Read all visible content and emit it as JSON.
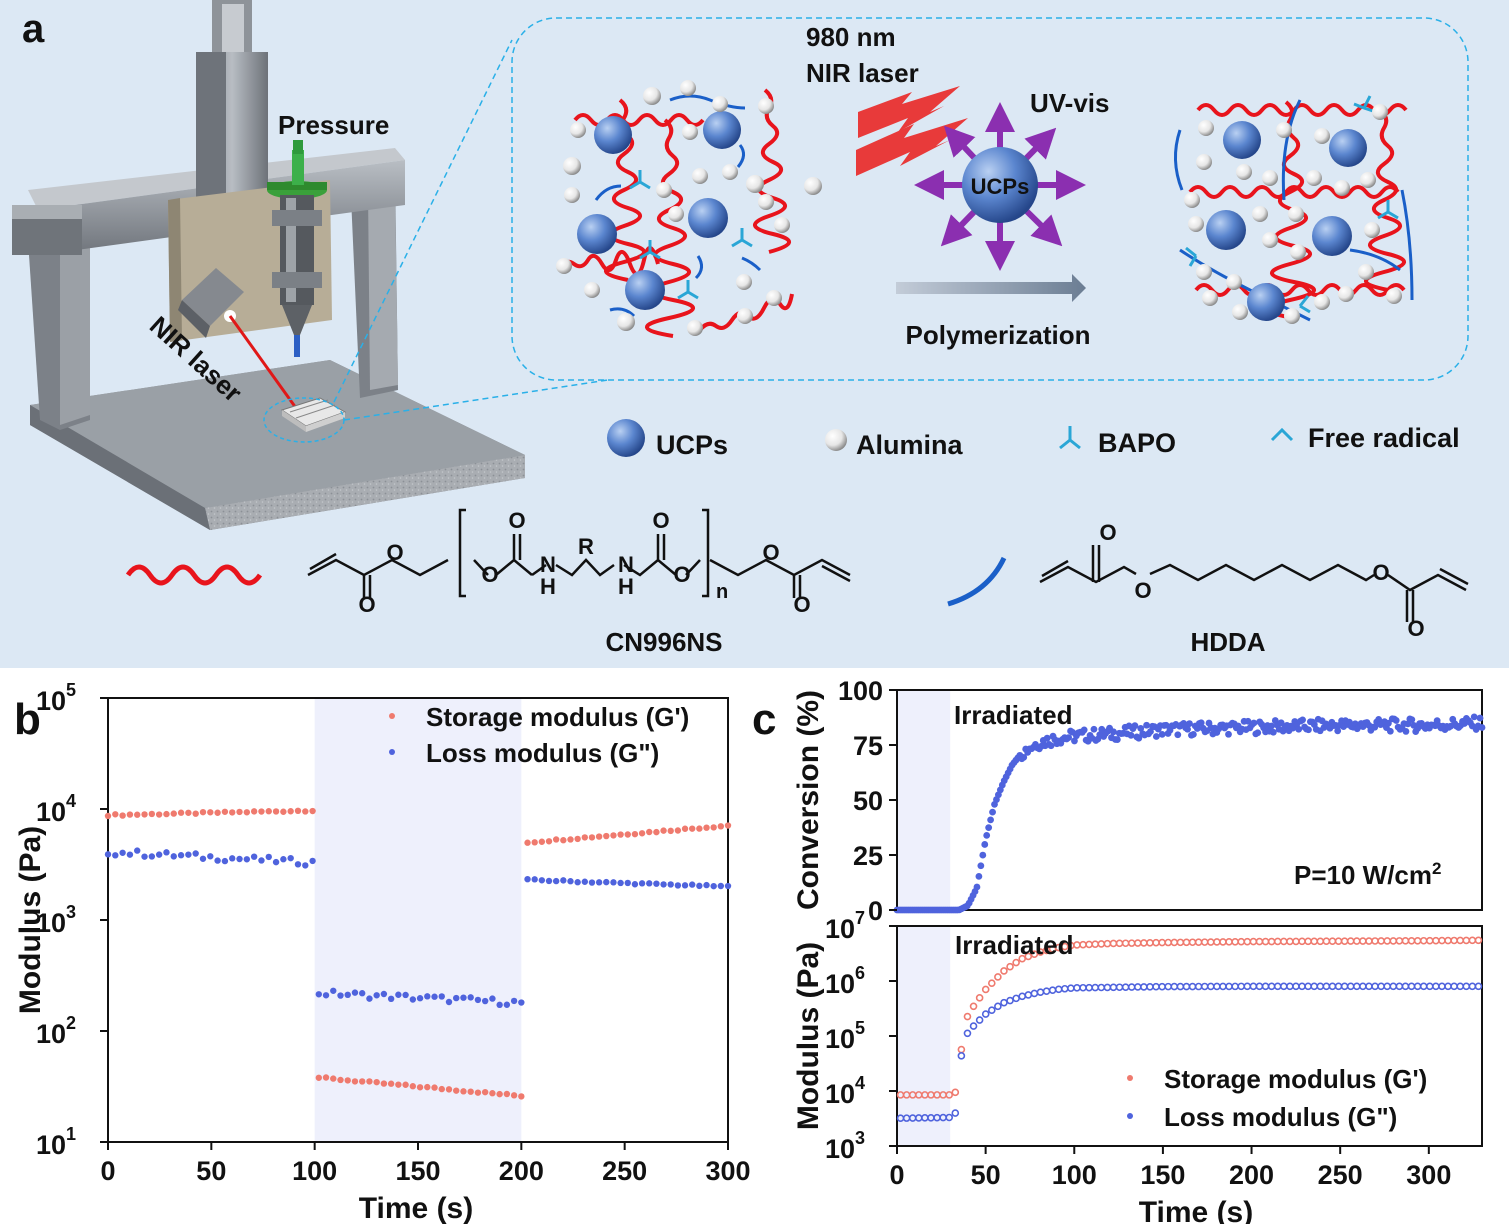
{
  "panel_a": {
    "label": "a",
    "pressure": "Pressure",
    "nir_laser": "NIR laser",
    "laser_line1": "980 nm",
    "laser_line2": "NIR laser",
    "uv_vis": "UV-vis",
    "ucps_center": "UCPs",
    "polymerization": "Polymerization",
    "legend": [
      "UCPs",
      "Alumina",
      "BAPO",
      "Free radical"
    ],
    "monomer1": {
      "name": "CN996NS",
      "atoms": {
        "O": "O",
        "N": "N",
        "H": "H",
        "R": "R",
        "n": "n"
      }
    },
    "monomer2": {
      "name": "HDDA"
    },
    "colors": {
      "background": "#dce8f4",
      "resin_chain": "#e8141c",
      "hdda_chain": "#1a5fc8",
      "bapo": "#2aa6d6",
      "ucp": "#4a78c4",
      "alumina": "#f2f2f2"
    }
  },
  "chart_data": [
    {
      "panel": "b",
      "type": "scatter",
      "xlabel": "Time (s)",
      "ylabel": "Modulus (Pa)",
      "xlim": [
        0,
        300
      ],
      "ylim": [
        10,
        100000
      ],
      "yscale": "log",
      "xticks": [
        "0",
        "50",
        "100",
        "150",
        "200",
        "250",
        "300"
      ],
      "yticks": [
        "10",
        "10",
        "10",
        "10",
        "10"
      ],
      "ytick_exps": [
        "1",
        "2",
        "3",
        "4",
        "5"
      ],
      "shaded": [
        100,
        200
      ],
      "legend": "top-right",
      "series": [
        {
          "name": "Storage modulus (G')",
          "color": "#ef7a6e",
          "segments": [
            {
              "x0": 0,
              "x1": 99,
              "y0": 8800,
              "y1": 9700
            },
            {
              "x0": 102,
              "x1": 200,
              "y0": 38,
              "y1": 26
            },
            {
              "x0": 203,
              "x1": 300,
              "y0": 5000,
              "y1": 7100
            }
          ]
        },
        {
          "name": "Loss modulus (G\")",
          "color": "#4f63dd",
          "segments": [
            {
              "x0": 0,
              "x1": 99,
              "y0": 4100,
              "y1": 3300
            },
            {
              "x0": 102,
              "x1": 200,
              "y0": 220,
              "y1": 180
            },
            {
              "x0": 203,
              "x1": 300,
              "y0": 2300,
              "y1": 2000
            }
          ]
        }
      ]
    },
    {
      "panel": "c-top",
      "type": "scatter",
      "xlabel": "",
      "ylabel": "Conversion (%)",
      "xlim": [
        0,
        330
      ],
      "ylim": [
        0,
        100
      ],
      "yticks": [
        "0",
        "25",
        "50",
        "75",
        "100"
      ],
      "shaded": [
        0,
        30
      ],
      "annotation": "Irradiated",
      "note": "P=10 W/cm",
      "note_sup": "2",
      "series": [
        {
          "name": "",
          "color": "#4f63dd",
          "points": [
            [
              0,
              0
            ],
            [
              10,
              0
            ],
            [
              20,
              0
            ],
            [
              30,
              0
            ],
            [
              35,
              0
            ],
            [
              40,
              2
            ],
            [
              45,
              10
            ],
            [
              50,
              32
            ],
            [
              55,
              48
            ],
            [
              60,
              58
            ],
            [
              65,
              66
            ],
            [
              70,
              71
            ],
            [
              75,
              74
            ],
            [
              80,
              76
            ],
            [
              90,
              78
            ],
            [
              100,
              79
            ],
            [
              120,
              80
            ],
            [
              150,
              82
            ],
            [
              200,
              83
            ],
            [
              250,
              84
            ],
            [
              300,
              84
            ],
            [
              330,
              85
            ]
          ]
        }
      ]
    },
    {
      "panel": "c-bottom",
      "type": "scatter",
      "xlabel": "Time (s)",
      "ylabel": "Modulus (Pa)",
      "xlim": [
        0,
        330
      ],
      "ylim": [
        1000,
        10000000
      ],
      "yscale": "log",
      "xticks": [
        "0",
        "50",
        "100",
        "150",
        "200",
        "250",
        "300"
      ],
      "yticks": [
        "10",
        "10",
        "10",
        "10",
        "10"
      ],
      "ytick_exps": [
        "3",
        "4",
        "5",
        "6",
        "7"
      ],
      "shaded": [
        0,
        30
      ],
      "annotation": "Irradiated",
      "legend": "bottom-right",
      "series": [
        {
          "name": "Storage modulus (G')",
          "color": "#ef7a6e",
          "points": [
            [
              2,
              8500
            ],
            [
              30,
              8500
            ],
            [
              33,
              9500
            ],
            [
              36,
              50000
            ],
            [
              40,
              250000
            ],
            [
              50,
              700000
            ],
            [
              60,
              1500000
            ],
            [
              70,
              2500000
            ],
            [
              80,
              3300000
            ],
            [
              90,
              4000000
            ],
            [
              100,
              4500000
            ],
            [
              120,
              4800000
            ],
            [
              150,
              5000000
            ],
            [
              200,
              5200000
            ],
            [
              250,
              5300000
            ],
            [
              300,
              5400000
            ],
            [
              328,
              5500000
            ]
          ]
        },
        {
          "name": "Loss modulus (G\")",
          "color": "#4f63dd",
          "points": [
            [
              2,
              3200
            ],
            [
              30,
              3300
            ],
            [
              33,
              4000
            ],
            [
              36,
              40000
            ],
            [
              40,
              120000
            ],
            [
              50,
              250000
            ],
            [
              60,
              400000
            ],
            [
              70,
              520000
            ],
            [
              80,
              620000
            ],
            [
              90,
              700000
            ],
            [
              100,
              750000
            ],
            [
              150,
              790000
            ],
            [
              200,
              800000
            ],
            [
              250,
              800000
            ],
            [
              300,
              800000
            ],
            [
              328,
              800000
            ]
          ]
        }
      ]
    }
  ]
}
